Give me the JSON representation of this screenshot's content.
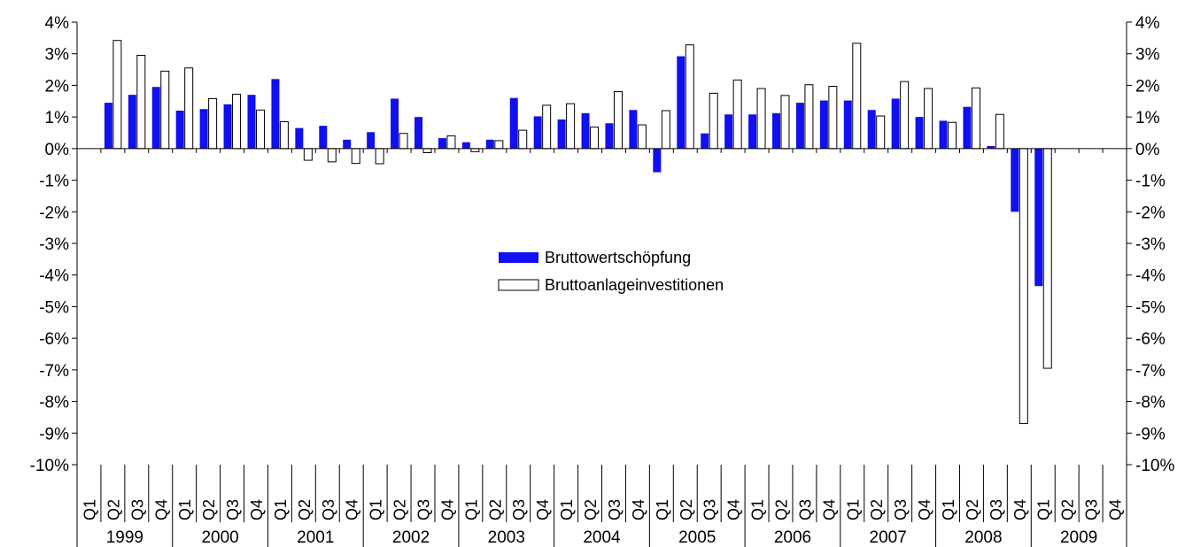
{
  "chart_data": {
    "type": "bar",
    "title": "",
    "xlabel": "",
    "ylabel": "",
    "ylim": [
      -10,
      4
    ],
    "y_ticks": [
      -10,
      -9,
      -8,
      -7,
      -6,
      -5,
      -4,
      -3,
      -2,
      -1,
      0,
      1,
      2,
      3,
      4
    ],
    "y_tick_labels": [
      "-10%",
      "-9%",
      "-8%",
      "-7%",
      "-6%",
      "-5%",
      "-4%",
      "-3%",
      "-2%",
      "-1%",
      "0%",
      "1%",
      "2%",
      "3%",
      "4%"
    ],
    "y_axes": [
      "left",
      "right"
    ],
    "grid": false,
    "legend_position": "center",
    "quarters": [
      "Q1",
      "Q2",
      "Q3",
      "Q4"
    ],
    "years": [
      "1999",
      "2000",
      "2001",
      "2002",
      "2003",
      "2004",
      "2005",
      "2006",
      "2007",
      "2008",
      "2009"
    ],
    "categories": [
      "1999 Q1",
      "1999 Q2",
      "1999 Q3",
      "1999 Q4",
      "2000 Q1",
      "2000 Q2",
      "2000 Q3",
      "2000 Q4",
      "2001 Q1",
      "2001 Q2",
      "2001 Q3",
      "2001 Q4",
      "2002 Q1",
      "2002 Q2",
      "2002 Q3",
      "2002 Q4",
      "2003 Q1",
      "2003 Q2",
      "2003 Q3",
      "2003 Q4",
      "2004 Q1",
      "2004 Q2",
      "2004 Q3",
      "2004 Q4",
      "2005 Q1",
      "2005 Q2",
      "2005 Q3",
      "2005 Q4",
      "2006 Q1",
      "2006 Q2",
      "2006 Q3",
      "2006 Q4",
      "2007 Q1",
      "2007 Q2",
      "2007 Q3",
      "2007 Q4",
      "2008 Q1",
      "2008 Q2",
      "2008 Q3",
      "2008 Q4",
      "2009 Q1",
      "2009 Q2",
      "2009 Q3",
      "2009 Q4"
    ],
    "series": [
      {
        "name": "Bruttowertschöpfung",
        "color": "#1010f0",
        "values": [
          null,
          1.45,
          1.7,
          1.95,
          1.2,
          1.25,
          1.4,
          1.7,
          2.2,
          0.65,
          0.72,
          0.28,
          0.52,
          1.58,
          1.0,
          0.33,
          0.2,
          0.28,
          1.6,
          1.02,
          0.92,
          1.12,
          0.8,
          1.22,
          -0.75,
          2.92,
          0.48,
          1.08,
          1.08,
          1.12,
          1.45,
          1.52,
          1.52,
          1.22,
          1.58,
          1.0,
          0.88,
          1.32,
          0.08,
          -2.0,
          -4.35,
          null,
          null,
          null
        ]
      },
      {
        "name": "Bruttoanlageinvestitionen",
        "color": "#ffffff",
        "values": [
          null,
          3.42,
          2.95,
          2.45,
          2.55,
          1.58,
          1.72,
          1.22,
          0.85,
          -0.37,
          -0.42,
          -0.47,
          -0.48,
          0.48,
          -0.13,
          0.4,
          -0.1,
          0.25,
          0.58,
          1.37,
          1.42,
          0.68,
          1.8,
          0.75,
          1.2,
          3.28,
          1.75,
          2.17,
          1.9,
          1.68,
          2.02,
          1.97,
          3.33,
          1.03,
          2.12,
          1.9,
          0.83,
          1.92,
          1.08,
          -8.7,
          -6.95,
          null,
          null,
          null
        ]
      }
    ]
  }
}
